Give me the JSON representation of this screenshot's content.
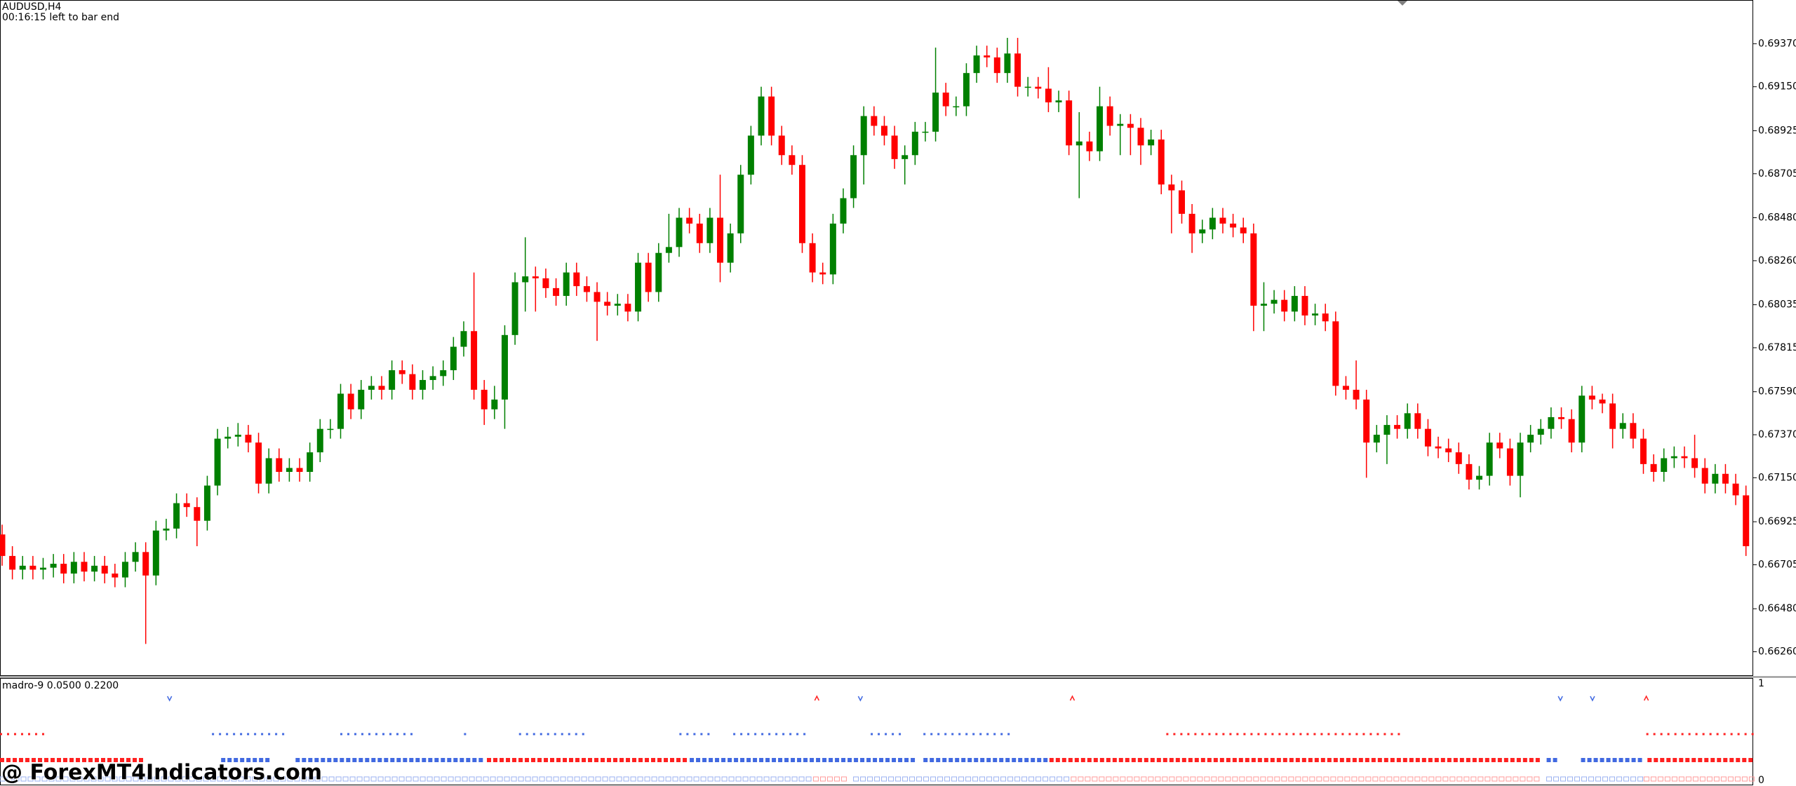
{
  "chart_data": {
    "type": "candlestick",
    "title": "AUDUSD,H4",
    "subtitle": "00:16:15 left to bar end",
    "up_color": "#008000",
    "down_color": "#ff0000",
    "ylim": [
      0.6614,
      0.6959
    ],
    "yticks": [
      {
        "value": 0.6937,
        "label": "0.69370"
      },
      {
        "value": 0.6915,
        "label": "0.69150"
      },
      {
        "value": 0.68925,
        "label": "0.68925"
      },
      {
        "value": 0.68705,
        "label": "0.68705"
      },
      {
        "value": 0.6848,
        "label": "0.68480"
      },
      {
        "value": 0.6826,
        "label": "0.68260"
      },
      {
        "value": 0.68035,
        "label": "0.68035"
      },
      {
        "value": 0.67815,
        "label": "0.67815"
      },
      {
        "value": 0.6759,
        "label": "0.67590"
      },
      {
        "value": 0.6737,
        "label": "0.67370"
      },
      {
        "value": 0.6715,
        "label": "0.67150"
      },
      {
        "value": 0.66925,
        "label": "0.66925"
      },
      {
        "value": 0.66705,
        "label": "0.66705"
      },
      {
        "value": 0.6648,
        "label": "0.66480"
      },
      {
        "value": 0.6626,
        "label": "0.66260"
      }
    ],
    "open": [
      0.6686,
      0.6675,
      0.6668,
      0.667,
      0.6668,
      0.6669,
      0.6671,
      0.6666,
      0.6672,
      0.6667,
      0.667,
      0.6666,
      0.6664,
      0.6672,
      0.6677,
      0.6665,
      0.6688,
      0.6689,
      0.6702,
      0.67,
      0.6693,
      0.6711,
      0.6735,
      0.6736,
      0.6737,
      0.6733,
      0.6712,
      0.6725,
      0.6718,
      0.672,
      0.6718,
      0.6728,
      0.674,
      0.674,
      0.6758,
      0.675,
      0.676,
      0.6762,
      0.676,
      0.677,
      0.6768,
      0.676,
      0.6765,
      0.6767,
      0.677,
      0.6782,
      0.679,
      0.676,
      0.675,
      0.6755,
      0.6788,
      0.6815,
      0.6818,
      0.6817,
      0.6812,
      0.6808,
      0.682,
      0.6813,
      0.681,
      0.6805,
      0.6803,
      0.6804,
      0.68,
      0.6825,
      0.681,
      0.683,
      0.6833,
      0.6848,
      0.6845,
      0.6835,
      0.6848,
      0.6825,
      0.684,
      0.687,
      0.689,
      0.691,
      0.689,
      0.688,
      0.6875,
      0.6835,
      0.682,
      0.6819,
      0.6845,
      0.6858,
      0.688,
      0.69,
      0.6895,
      0.689,
      0.6878,
      0.688,
      0.6892,
      0.6892,
      0.6912,
      0.6905,
      0.6905,
      0.6922,
      0.6931,
      0.693,
      0.6922,
      0.6932,
      0.6915,
      0.6915,
      0.6914,
      0.6907,
      0.6908,
      0.6885,
      0.6887,
      0.6882,
      0.6905,
      0.6895,
      0.6896,
      0.6894,
      0.6885,
      0.6888,
      0.6865,
      0.6862,
      0.685,
      0.684,
      0.6842,
      0.6848,
      0.6845,
      0.6843,
      0.684,
      0.6803,
      0.6804,
      0.6806,
      0.68,
      0.6808,
      0.6798,
      0.6799,
      0.6795,
      0.6762,
      0.676,
      0.6755,
      0.6733,
      0.6737,
      0.6742,
      0.674,
      0.6748,
      0.674,
      0.6731,
      0.673,
      0.6728,
      0.6722,
      0.6714,
      0.6716,
      0.6733,
      0.673,
      0.6716,
      0.6733,
      0.6737,
      0.674,
      0.6746,
      0.6745,
      0.6733,
      0.6757,
      0.6755,
      0.6753,
      0.674,
      0.6743,
      0.6735,
      0.6722,
      0.6718,
      0.6725,
      0.6726,
      0.6725,
      0.672,
      0.6712,
      0.6717,
      0.6712,
      0.6706
    ],
    "high": [
      0.6691,
      0.668,
      0.6675,
      0.6675,
      0.6674,
      0.6676,
      0.6676,
      0.6677,
      0.6677,
      0.6675,
      0.6675,
      0.6671,
      0.6677,
      0.6682,
      0.6682,
      0.6693,
      0.6694,
      0.6707,
      0.6707,
      0.6705,
      0.6716,
      0.674,
      0.6741,
      0.6743,
      0.6742,
      0.6738,
      0.673,
      0.673,
      0.6725,
      0.6725,
      0.6733,
      0.6745,
      0.6745,
      0.6763,
      0.6763,
      0.6765,
      0.6767,
      0.6767,
      0.6775,
      0.6775,
      0.6773,
      0.677,
      0.6772,
      0.6775,
      0.6787,
      0.6795,
      0.682,
      0.6765,
      0.6762,
      0.6793,
      0.682,
      0.6838,
      0.6823,
      0.6822,
      0.6817,
      0.6825,
      0.6825,
      0.6818,
      0.6815,
      0.681,
      0.6809,
      0.6809,
      0.683,
      0.683,
      0.6835,
      0.685,
      0.6853,
      0.6853,
      0.685,
      0.6853,
      0.687,
      0.6845,
      0.6875,
      0.6895,
      0.6915,
      0.6915,
      0.6895,
      0.6885,
      0.688,
      0.684,
      0.6825,
      0.685,
      0.6863,
      0.6885,
      0.6905,
      0.6905,
      0.69,
      0.6895,
      0.6885,
      0.6897,
      0.6897,
      0.6935,
      0.6917,
      0.691,
      0.6927,
      0.6936,
      0.6936,
      0.6935,
      0.694,
      0.694,
      0.692,
      0.692,
      0.6925,
      0.6913,
      0.6913,
      0.6902,
      0.6892,
      0.6915,
      0.691,
      0.6901,
      0.6901,
      0.6899,
      0.6893,
      0.6893,
      0.687,
      0.6867,
      0.6855,
      0.6847,
      0.6853,
      0.6853,
      0.685,
      0.6848,
      0.6845,
      0.6815,
      0.6811,
      0.6811,
      0.6813,
      0.6813,
      0.6804,
      0.6804,
      0.68,
      0.6767,
      0.6775,
      0.676,
      0.6742,
      0.6747,
      0.6747,
      0.6753,
      0.6753,
      0.6745,
      0.6736,
      0.6735,
      0.6733,
      0.6727,
      0.6721,
      0.6738,
      0.6738,
      0.6735,
      0.6738,
      0.6742,
      0.6745,
      0.6751,
      0.6751,
      0.675,
      0.6762,
      0.6762,
      0.6758,
      0.6758,
      0.6748,
      0.6748,
      0.674,
      0.6727,
      0.673,
      0.6731,
      0.6731,
      0.6737,
      0.6725,
      0.6722,
      0.6722,
      0.6717,
      0.6711
    ],
    "low": [
      0.667,
      0.6663,
      0.6663,
      0.6663,
      0.6663,
      0.6664,
      0.6661,
      0.6661,
      0.6662,
      0.6662,
      0.6661,
      0.6659,
      0.6659,
      0.6667,
      0.663,
      0.666,
      0.6683,
      0.6684,
      0.6695,
      0.668,
      0.6688,
      0.6706,
      0.673,
      0.6731,
      0.6728,
      0.6707,
      0.6707,
      0.6713,
      0.6713,
      0.6713,
      0.6713,
      0.6723,
      0.6735,
      0.6735,
      0.6745,
      0.6745,
      0.6755,
      0.6755,
      0.6755,
      0.6763,
      0.6755,
      0.6755,
      0.676,
      0.6762,
      0.6765,
      0.6777,
      0.6755,
      0.6742,
      0.6745,
      0.674,
      0.6783,
      0.68,
      0.68,
      0.6807,
      0.6803,
      0.6803,
      0.6808,
      0.6805,
      0.6785,
      0.6798,
      0.6798,
      0.6795,
      0.6795,
      0.6805,
      0.6805,
      0.6825,
      0.6828,
      0.684,
      0.683,
      0.683,
      0.6815,
      0.682,
      0.6835,
      0.6865,
      0.6885,
      0.6885,
      0.6875,
      0.687,
      0.683,
      0.6815,
      0.6814,
      0.6814,
      0.684,
      0.6853,
      0.6865,
      0.689,
      0.6885,
      0.6873,
      0.6865,
      0.6875,
      0.6887,
      0.6887,
      0.69,
      0.69,
      0.69,
      0.6917,
      0.6925,
      0.6917,
      0.6917,
      0.691,
      0.691,
      0.6909,
      0.6902,
      0.6902,
      0.688,
      0.6858,
      0.6877,
      0.6877,
      0.689,
      0.688,
      0.688,
      0.6875,
      0.688,
      0.686,
      0.684,
      0.6845,
      0.683,
      0.6835,
      0.6837,
      0.684,
      0.6838,
      0.6835,
      0.679,
      0.679,
      0.6799,
      0.6795,
      0.6795,
      0.6793,
      0.6793,
      0.679,
      0.6757,
      0.6755,
      0.675,
      0.6715,
      0.6728,
      0.6722,
      0.6735,
      0.6735,
      0.6735,
      0.6726,
      0.6725,
      0.6723,
      0.6717,
      0.6709,
      0.6709,
      0.6711,
      0.6725,
      0.6711,
      0.6705,
      0.6728,
      0.6732,
      0.6735,
      0.674,
      0.6728,
      0.6728,
      0.675,
      0.6748,
      0.673,
      0.6735,
      0.673,
      0.6717,
      0.6713,
      0.6713,
      0.672,
      0.672,
      0.6715,
      0.6707,
      0.6707,
      0.6707,
      0.6701,
      0.6675
    ],
    "close": [
      0.6675,
      0.6668,
      0.667,
      0.6668,
      0.6669,
      0.6671,
      0.6666,
      0.6672,
      0.6667,
      0.667,
      0.6666,
      0.6664,
      0.6672,
      0.6677,
      0.6665,
      0.6688,
      0.6689,
      0.6702,
      0.67,
      0.6693,
      0.6711,
      0.6735,
      0.6736,
      0.6737,
      0.6733,
      0.6712,
      0.6725,
      0.6718,
      0.672,
      0.6718,
      0.6728,
      0.674,
      0.674,
      0.6758,
      0.675,
      0.676,
      0.6762,
      0.676,
      0.677,
      0.6768,
      0.676,
      0.6765,
      0.6767,
      0.677,
      0.6782,
      0.679,
      0.676,
      0.675,
      0.6755,
      0.6788,
      0.6815,
      0.6818,
      0.6817,
      0.6812,
      0.6808,
      0.682,
      0.6813,
      0.681,
      0.6805,
      0.6803,
      0.6804,
      0.68,
      0.6825,
      0.681,
      0.683,
      0.6833,
      0.6848,
      0.6845,
      0.6835,
      0.6848,
      0.6825,
      0.684,
      0.687,
      0.689,
      0.691,
      0.689,
      0.688,
      0.6875,
      0.6835,
      0.682,
      0.6819,
      0.6845,
      0.6858,
      0.688,
      0.69,
      0.6895,
      0.689,
      0.6878,
      0.688,
      0.6892,
      0.6892,
      0.6912,
      0.6905,
      0.6905,
      0.6922,
      0.6931,
      0.693,
      0.6922,
      0.6932,
      0.6915,
      0.6915,
      0.6914,
      0.6907,
      0.6908,
      0.6885,
      0.6887,
      0.6882,
      0.6905,
      0.6895,
      0.6896,
      0.6894,
      0.6885,
      0.6888,
      0.6865,
      0.6862,
      0.685,
      0.684,
      0.6842,
      0.6848,
      0.6845,
      0.6843,
      0.684,
      0.6803,
      0.6804,
      0.6806,
      0.68,
      0.6808,
      0.6798,
      0.6799,
      0.6795,
      0.6762,
      0.676,
      0.6755,
      0.6733,
      0.6737,
      0.6742,
      0.674,
      0.6748,
      0.674,
      0.6731,
      0.673,
      0.6728,
      0.6722,
      0.6714,
      0.6716,
      0.6733,
      0.673,
      0.6716,
      0.6733,
      0.6737,
      0.674,
      0.6746,
      0.6745,
      0.6733,
      0.6757,
      0.6755,
      0.6753,
      0.674,
      0.6743,
      0.6735,
      0.6722,
      0.6718,
      0.6725,
      0.6726,
      0.6725,
      0.672,
      0.6712,
      0.6717,
      0.6712,
      0.6706,
      0.668
    ]
  },
  "indicator": {
    "title": "madro-9 0.0500 0.2200",
    "ylim": [
      0,
      1
    ],
    "yticks": [
      0,
      1
    ]
  },
  "watermark": "@ ForexMT4Indicators.com"
}
